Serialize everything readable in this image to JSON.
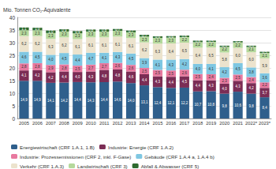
{
  "chart_data": {
    "type": "bar",
    "stacked": true,
    "data_labels": true,
    "grid": true,
    "legend": "bottom",
    "y_label": "Mio. Tonnen CO₂-Äquivalente",
    "categories": [
      "2005",
      "2006",
      "2007",
      "2008",
      "2009",
      "2010",
      "2011",
      "2012",
      "2013",
      "2014",
      "2015",
      "2016",
      "2017",
      "2018",
      "2019",
      "2020",
      "2021",
      "2022*",
      "2023*"
    ],
    "ylim": [
      0,
      40
    ],
    "yticks": [
      0,
      5,
      10,
      15,
      20,
      25,
      30,
      35,
      40
    ],
    "series": [
      {
        "name": "Energiewirtschaft (CRF 1.A.1, 1.B)",
        "color": "#2f5f8c",
        "values": [
          14.9,
          14.9,
          14.1,
          14.2,
          14.4,
          14.3,
          14.4,
          14.6,
          14.0,
          13.1,
          12.4,
          12.1,
          12.2,
          10.7,
          10.8,
          9.8,
          10.6,
          9.8,
          8.4
        ],
        "value_labels": [
          "14,9",
          "14,9",
          "14,1",
          "14,2",
          "14,4",
          "14,3",
          "14,4",
          "14,6",
          "14,0",
          "13,1",
          "12,4",
          "12,1",
          "12,2",
          "10,7",
          "10,8",
          "9,8",
          "10,6",
          "9,8",
          "8,4"
        ]
      },
      {
        "name": "Industrie: Energie (CRF 1.A.2)",
        "color": "#7b2d55",
        "values": [
          4.1,
          4.2,
          4.2,
          4.4,
          4.0,
          4.3,
          4.8,
          4.8,
          4.6,
          4.4,
          4.3,
          4.4,
          4.5,
          4.4,
          4.3,
          4.0,
          4.3,
          4.2,
          3.7
        ],
        "value_labels": [
          "4,1",
          "4,2",
          "4,2",
          "4,4",
          "4,0",
          "4,3",
          "4,8",
          "4,8",
          "4,6",
          "4,4",
          "4,3",
          "4,4",
          "4,5",
          "4,4",
          "4,3",
          "4,0",
          "4,3",
          "4,2",
          "3,7"
        ]
      },
      {
        "name": "Industrie: Prozessemissionen (CRF 2, inkl. F-Gase)",
        "color": "#e8799f",
        "values": [
          2.8,
          2.8,
          2.9,
          2.8,
          2.5,
          2.7,
          2.7,
          2.6,
          2.6,
          2.5,
          2.5,
          2.5,
          2.6,
          2.5,
          2.4,
          2.3,
          2.5,
          2.4,
          2.2
        ],
        "value_labels": [
          "2,8",
          "2,8",
          "2,9",
          "2,8",
          "2,5",
          "2,7",
          "2,7",
          "2,6",
          "2,6",
          "2,5",
          "2,5",
          "2,5",
          "2,6",
          "2,5",
          "2,4",
          "2,3",
          "2,5",
          "2,4",
          "2,2"
        ]
      },
      {
        "name": "Gebäude (CRF 1.A.4 a, 1.A.4 b)",
        "color": "#7fc7e2",
        "values": [
          4.6,
          4.5,
          4.0,
          4.5,
          4.4,
          4.7,
          4.1,
          4.3,
          4.5,
          3.9,
          4.1,
          4.3,
          4.2,
          4.0,
          4.1,
          4.2,
          4.5,
          3.8,
          3.6
        ],
        "value_labels": [
          "4,6",
          "4,5",
          "4,0",
          "4,5",
          "4,4",
          "4,7",
          "4,1",
          "4,3",
          "4,5",
          "3,9",
          "4,1",
          "4,3",
          "4,2",
          "4,0",
          "4,1",
          "4,2",
          "4,5",
          "3,8",
          "3,6"
        ]
      },
      {
        "name": "Verkehr (CRF 1.A.3)",
        "color": "#ece3cd",
        "values": [
          6.2,
          6.2,
          6.3,
          6.2,
          6.1,
          6.1,
          6.1,
          6.1,
          6.1,
          6.2,
          6.3,
          6.4,
          6.5,
          6.4,
          6.5,
          5.8,
          6.0,
          6.0,
          5.9
        ],
        "value_labels": [
          "6,2",
          "6,2",
          "6,3",
          "6,2",
          "6,1",
          "6,1",
          "6,1",
          "6,1",
          "6,1",
          "6,2",
          "6,3",
          "6,4",
          "6,5",
          "6,4",
          "6,5",
          "5,8",
          "6,0",
          "6,0",
          "5,9"
        ]
      },
      {
        "name": "Landwirtschaft (CRF 3)",
        "color": "#b5d99c",
        "values": [
          2.3,
          2.3,
          2.3,
          2.3,
          2.3,
          2.3,
          2.3,
          2.3,
          2.3,
          2.3,
          2.3,
          2.3,
          2.2,
          2.2,
          2.2,
          2.2,
          2.2,
          2.1,
          2.1
        ],
        "value_labels": [
          "2,3",
          "2,3",
          "2,3",
          "2,3",
          "2,3",
          "2,3",
          "2,3",
          "2,3",
          "2,3",
          "2,3",
          "2,3",
          "2,3",
          "2,2",
          "2,2",
          "2,2",
          "2,2",
          "2,2",
          "2,1",
          "2,1"
        ]
      },
      {
        "name": "Abfall & Abwasser (CRF 5)",
        "color": "#2e6b30",
        "values": [
          1.1,
          1.0,
          1.0,
          0.9,
          0.9,
          0.8,
          0.8,
          0.7,
          0.7,
          0.7,
          0.6,
          0.6,
          0.6,
          0.6,
          0.5,
          0.5,
          0.5,
          0.5,
          0.5
        ],
        "value_labels": [
          "1,1",
          "1,0",
          "1,0",
          "0,9",
          "0,9",
          "0,8",
          "0,8",
          "0,7",
          "0,7",
          "0,7",
          "0,6",
          "0,6",
          "0,6",
          "0,6",
          "0,5",
          "0,5",
          "0,5",
          "0,5",
          "0,5"
        ]
      }
    ],
    "totals": {
      "values": [
        36.0,
        35.9,
        34.8,
        35.3,
        34.6,
        35.2,
        35.2,
        35.4,
        34.8,
        33.1,
        32.5,
        32.6,
        32.8,
        30.8,
        30.8,
        28.8,
        30.6,
        28.8,
        26.4
      ],
      "value_labels": [
        "36,0",
        "35,9",
        "34,8",
        "35,3",
        "34,6",
        "35,2",
        "35,2",
        "35,4",
        "34,8",
        "33,1",
        "32,5",
        "32,6",
        "32,8",
        "30,8",
        "30,8",
        "28,8",
        "30,6",
        "28,8",
        "26,4"
      ]
    }
  }
}
